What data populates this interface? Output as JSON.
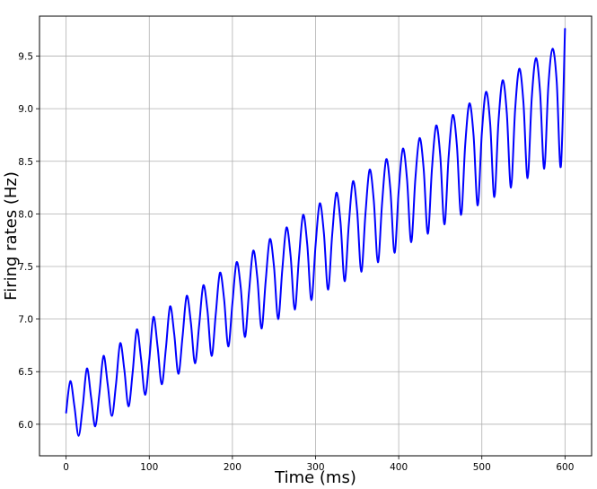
{
  "chart_data": {
    "type": "line",
    "title": "",
    "xlabel": "Time (ms)",
    "ylabel": "Firing rates (Hz)",
    "xlim": [
      -32,
      632
    ],
    "ylim": [
      5.7,
      9.88
    ],
    "x_ticks": [
      0,
      100,
      200,
      300,
      400,
      500,
      600
    ],
    "x_tick_labels": [
      "0",
      "100",
      "200",
      "300",
      "400",
      "500",
      "600"
    ],
    "y_ticks": [
      6.0,
      6.5,
      7.0,
      7.5,
      8.0,
      8.5,
      9.0,
      9.5
    ],
    "y_tick_labels": [
      "6.0",
      "6.5",
      "7.0",
      "7.5",
      "8.0",
      "8.5",
      "9.0",
      "9.5"
    ],
    "grid": true,
    "legend": null,
    "series": [
      {
        "color": "#0000ff",
        "linewidth": 2,
        "x": [
          0,
          5,
          10,
          15,
          20,
          25,
          30,
          35,
          40,
          45,
          50,
          55,
          60,
          65,
          70,
          75,
          80,
          85,
          90,
          95,
          100,
          105,
          110,
          115,
          120,
          125,
          130,
          135,
          140,
          145,
          150,
          155,
          160,
          165,
          170,
          175,
          180,
          185,
          190,
          195,
          200,
          205,
          210,
          215,
          220,
          225,
          230,
          235,
          240,
          245,
          250,
          255,
          260,
          265,
          270,
          275,
          280,
          285,
          290,
          295,
          300,
          305,
          310,
          315,
          320,
          325,
          330,
          335,
          340,
          345,
          350,
          355,
          360,
          365,
          370,
          375,
          380,
          385,
          390,
          395,
          400,
          405,
          410,
          415,
          420,
          425,
          430,
          435,
          440,
          445,
          450,
          455,
          460,
          465,
          470,
          475,
          480,
          485,
          490,
          495,
          500,
          505,
          510,
          515,
          520,
          525,
          530,
          535,
          540,
          545,
          550,
          555,
          560,
          565,
          570,
          575,
          580,
          585,
          590,
          595,
          600
        ],
        "y": [
          6.11,
          6.41,
          6.17,
          5.89,
          6.17,
          6.53,
          6.26,
          5.98,
          6.29,
          6.65,
          6.38,
          6.08,
          6.38,
          6.77,
          6.52,
          6.17,
          6.49,
          6.9,
          6.63,
          6.28,
          6.61,
          7.02,
          6.74,
          6.38,
          6.72,
          7.12,
          6.86,
          6.48,
          6.83,
          7.22,
          6.97,
          6.58,
          6.94,
          7.32,
          7.08,
          6.65,
          7.05,
          7.44,
          7.19,
          6.74,
          7.15,
          7.54,
          7.3,
          6.83,
          7.26,
          7.65,
          7.39,
          6.91,
          7.36,
          7.76,
          7.5,
          7.0,
          7.47,
          7.87,
          7.6,
          7.09,
          7.58,
          7.99,
          7.71,
          7.18,
          7.7,
          8.1,
          7.82,
          7.28,
          7.8,
          8.2,
          7.92,
          7.36,
          7.9,
          8.31,
          8.03,
          7.45,
          8.0,
          8.42,
          8.13,
          7.54,
          8.1,
          8.52,
          8.23,
          7.63,
          8.22,
          8.62,
          8.33,
          7.73,
          8.33,
          8.72,
          8.43,
          7.81,
          8.43,
          8.84,
          8.55,
          7.9,
          8.54,
          8.94,
          8.65,
          7.99,
          8.66,
          9.05,
          8.75,
          8.08,
          8.77,
          9.16,
          8.86,
          8.16,
          8.88,
          9.27,
          8.96,
          8.25,
          8.99,
          9.38,
          9.06,
          8.34,
          9.1,
          9.48,
          9.16,
          8.43,
          9.22,
          9.57,
          9.26,
          8.45,
          9.76
        ]
      }
    ]
  }
}
